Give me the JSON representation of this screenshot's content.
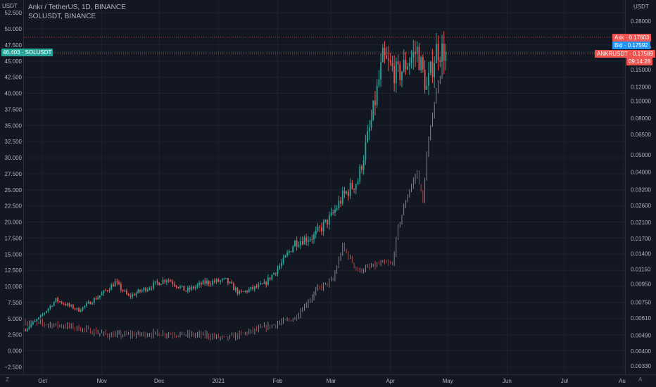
{
  "header": {
    "main_symbol": "Ankr / TetherUS, 1D, BINANCE",
    "compare_symbol": "SOLUSDT, BINANCE"
  },
  "left_axis": {
    "unit": "USDT"
  },
  "right_axis": {
    "unit": "USDT"
  },
  "corner": {
    "bottom_left": "Z",
    "bottom_right": "A"
  },
  "tags": {
    "solusdt_value": "46.403",
    "solusdt_name": "SOLUSDT",
    "ask_label": "Ask",
    "ask_value": "0.17603",
    "bid_label": "Bid",
    "bid_value": "0.17592",
    "ankr_name": "ANKRUSDT",
    "ankr_value": "0.17589",
    "countdown": "09:14:28"
  },
  "colors": {
    "background": "#131722",
    "up": "#26a69a",
    "down": "#ef5350",
    "secondary_line": "#b2b5be",
    "secondary_up": "#b2b5be",
    "secondary_down": "#ef5350",
    "ask": "#ef5350",
    "bid": "#2196f3",
    "solusdt_tag": "#26a69a"
  },
  "chart_data": {
    "type": "candlestick",
    "x_ticks": [
      "Oct",
      "Nov",
      "Dec",
      "2021",
      "Feb",
      "Mar",
      "Apr",
      "May",
      "Jun",
      "Jul",
      "Au"
    ],
    "left_axis_ticks": [
      "52.500",
      "50.000",
      "47.500",
      "45.000",
      "42.500",
      "40.000",
      "37.500",
      "35.000",
      "32.500",
      "30.000",
      "27.500",
      "25.000",
      "22.500",
      "20.000",
      "17.500",
      "15.000",
      "12.500",
      "10.000",
      "7.500",
      "5.000",
      "2.500",
      "0.000",
      "−2.500"
    ],
    "left_axis_range": [
      -2.5,
      52.5
    ],
    "right_axis_ticks": [
      "0.28000",
      "0.20000",
      "0.15000",
      "0.12000",
      "0.10000",
      "0.08000",
      "0.06500",
      "0.05000",
      "0.04000",
      "0.03200",
      "0.02600",
      "0.02100",
      "0.01700",
      "0.01400",
      "0.01150",
      "0.00950",
      "0.00750",
      "0.00610",
      "0.00490",
      "0.00400",
      "0.00330"
    ],
    "right_axis_scale": "log",
    "grid": true,
    "series": [
      {
        "name": "SOLUSDT",
        "style": "candles",
        "axis": "left",
        "last_value": 46.403,
        "keypoints": [
          [
            "2020-09-22",
            3.3
          ],
          [
            "2020-09-30",
            5.3
          ],
          [
            "2020-10-08",
            7.9
          ],
          [
            "2020-10-20",
            6.3
          ],
          [
            "2020-11-01",
            8.8
          ],
          [
            "2020-11-08",
            10.6
          ],
          [
            "2020-11-15",
            8.4
          ],
          [
            "2020-11-25",
            9.8
          ],
          [
            "2020-12-05",
            11.2
          ],
          [
            "2020-12-15",
            9.3
          ],
          [
            "2020-12-25",
            10.6
          ],
          [
            "2021-01-05",
            10.9
          ],
          [
            "2021-01-12",
            8.9
          ],
          [
            "2021-01-25",
            10.3
          ],
          [
            "2021-02-04",
            13.9
          ],
          [
            "2021-02-10",
            16.9
          ],
          [
            "2021-02-20",
            17.8
          ],
          [
            "2021-03-01",
            20.8
          ],
          [
            "2021-03-07",
            23.9
          ],
          [
            "2021-03-15",
            26.5
          ],
          [
            "2021-03-22",
            35.6
          ],
          [
            "2021-03-28",
            45.2
          ],
          [
            "2021-04-05",
            42.8
          ],
          [
            "2021-04-10",
            44.9
          ],
          [
            "2021-04-15",
            46.6
          ],
          [
            "2021-04-20",
            40.7
          ],
          [
            "2021-04-25",
            46.8
          ],
          [
            "2021-04-30",
            46.4
          ]
        ]
      },
      {
        "name": "ANKRUSDT",
        "style": "thin-bars",
        "axis": "right",
        "last_value": 0.17589,
        "keypoints": [
          [
            "2020-09-22",
            0.0058
          ],
          [
            "2020-10-15",
            0.0055
          ],
          [
            "2020-11-05",
            0.0049
          ],
          [
            "2020-12-01",
            0.005
          ],
          [
            "2020-12-25",
            0.0049
          ],
          [
            "2021-01-05",
            0.0047
          ],
          [
            "2021-01-25",
            0.0054
          ],
          [
            "2021-02-10",
            0.0061
          ],
          [
            "2021-02-22",
            0.0089
          ],
          [
            "2021-03-02",
            0.01
          ],
          [
            "2021-03-07",
            0.0153
          ],
          [
            "2021-03-15",
            0.0112
          ],
          [
            "2021-03-28",
            0.0124
          ],
          [
            "2021-04-02",
            0.0122
          ],
          [
            "2021-04-05",
            0.0195
          ],
          [
            "2021-04-10",
            0.03
          ],
          [
            "2021-04-15",
            0.04
          ],
          [
            "2021-04-18",
            0.027
          ],
          [
            "2021-04-20",
            0.05
          ],
          [
            "2021-04-23",
            0.085
          ],
          [
            "2021-04-26",
            0.13
          ],
          [
            "2021-04-30",
            0.176
          ]
        ]
      }
    ]
  }
}
